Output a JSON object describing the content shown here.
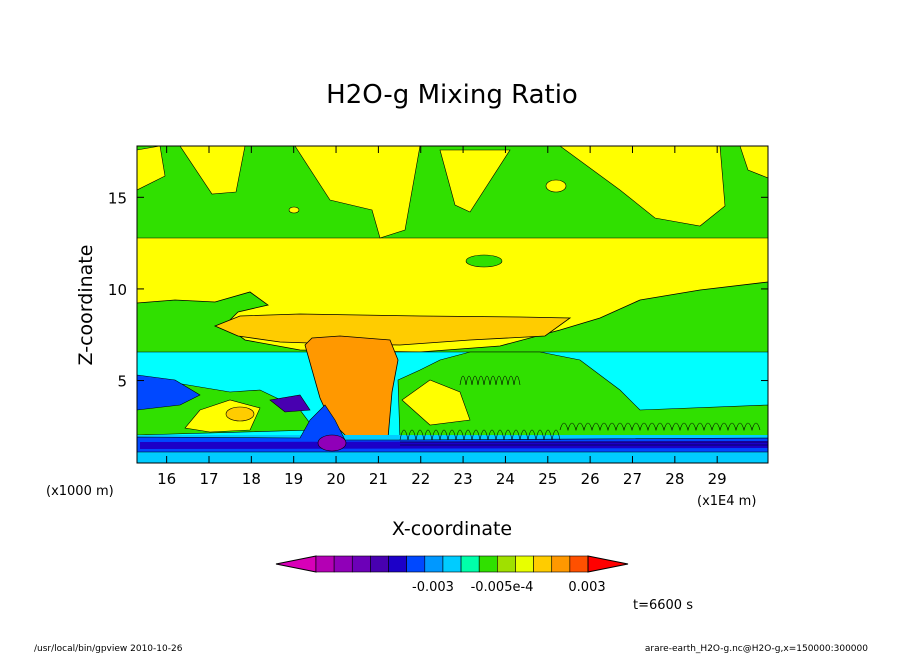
{
  "chart_data": {
    "type": "heatmap",
    "title": "H2O-g Mixing Ratio",
    "xlabel": "X-coordinate",
    "ylabel": "Z-coordinate",
    "x_unit_left": "(x1000 m)",
    "x_unit_right": "(x1E4 m)",
    "x_ticks": [
      "16",
      "17",
      "18",
      "19",
      "20",
      "21",
      "22",
      "23",
      "24",
      "25",
      "26",
      "27",
      "28",
      "29"
    ],
    "x_tick_values": [
      16,
      17,
      18,
      19,
      20,
      21,
      22,
      23,
      24,
      25,
      26,
      27,
      28,
      29
    ],
    "y_ticks": [
      "5",
      "10",
      "15"
    ],
    "y_tick_values": [
      5,
      10,
      15
    ],
    "xlim": [
      15.3,
      30.2
    ],
    "ylim": [
      0.5,
      17.8
    ],
    "colorbar": {
      "colors": [
        "#d800b8",
        "#b400b4",
        "#9000b8",
        "#6c00b8",
        "#4800b0",
        "#1c00c8",
        "#0048ff",
        "#0098ff",
        "#00ccff",
        "#00ffaa",
        "#30e000",
        "#a0e000",
        "#e8ff00",
        "#ffcc00",
        "#ff9800",
        "#ff5000",
        "#ff0000"
      ],
      "labels": [
        "-0.003",
        "-0.005e-4",
        "0.003"
      ]
    },
    "time_label": "t=6600 s",
    "footer_left": "/usr/local/bin/gpview  2010-10-26",
    "footer_right": "arare-earth_H2O-g.nc@H2O-g,x=150000:300000"
  }
}
